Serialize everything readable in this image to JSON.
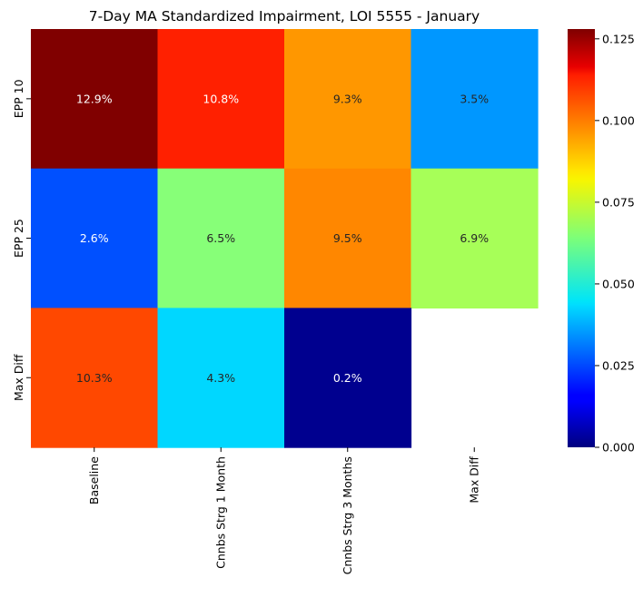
{
  "chart_data": {
    "type": "heatmap",
    "title": "7-Day MA Standardized Impairment, LOI 5555 - January",
    "x_categories": [
      "Baseline",
      "Cnnbs Strg 1 Month",
      "Cnnbs Strg 3 Months",
      "Max Diff"
    ],
    "y_categories": [
      "EPP 10",
      "EPP 25",
      "Max Diff"
    ],
    "values": [
      [
        0.129,
        0.108,
        0.093,
        0.035
      ],
      [
        0.026,
        0.065,
        0.095,
        0.069
      ],
      [
        0.103,
        0.043,
        0.002,
        null
      ]
    ],
    "annotations": [
      [
        "12.9%",
        "10.8%",
        "9.3%",
        "3.5%"
      ],
      [
        "2.6%",
        "6.5%",
        "9.5%",
        "6.9%"
      ],
      [
        "10.3%",
        "4.3%",
        "0.2%",
        ""
      ]
    ],
    "colormap": "jet",
    "colorbar": {
      "vmin": 0.0,
      "vmax": 0.128,
      "ticks": [
        0.0,
        0.025,
        0.05,
        0.075,
        0.1,
        0.125
      ],
      "tick_labels": [
        "0.000",
        "0.025",
        "0.050",
        "0.075",
        "0.100",
        "0.125"
      ]
    }
  }
}
